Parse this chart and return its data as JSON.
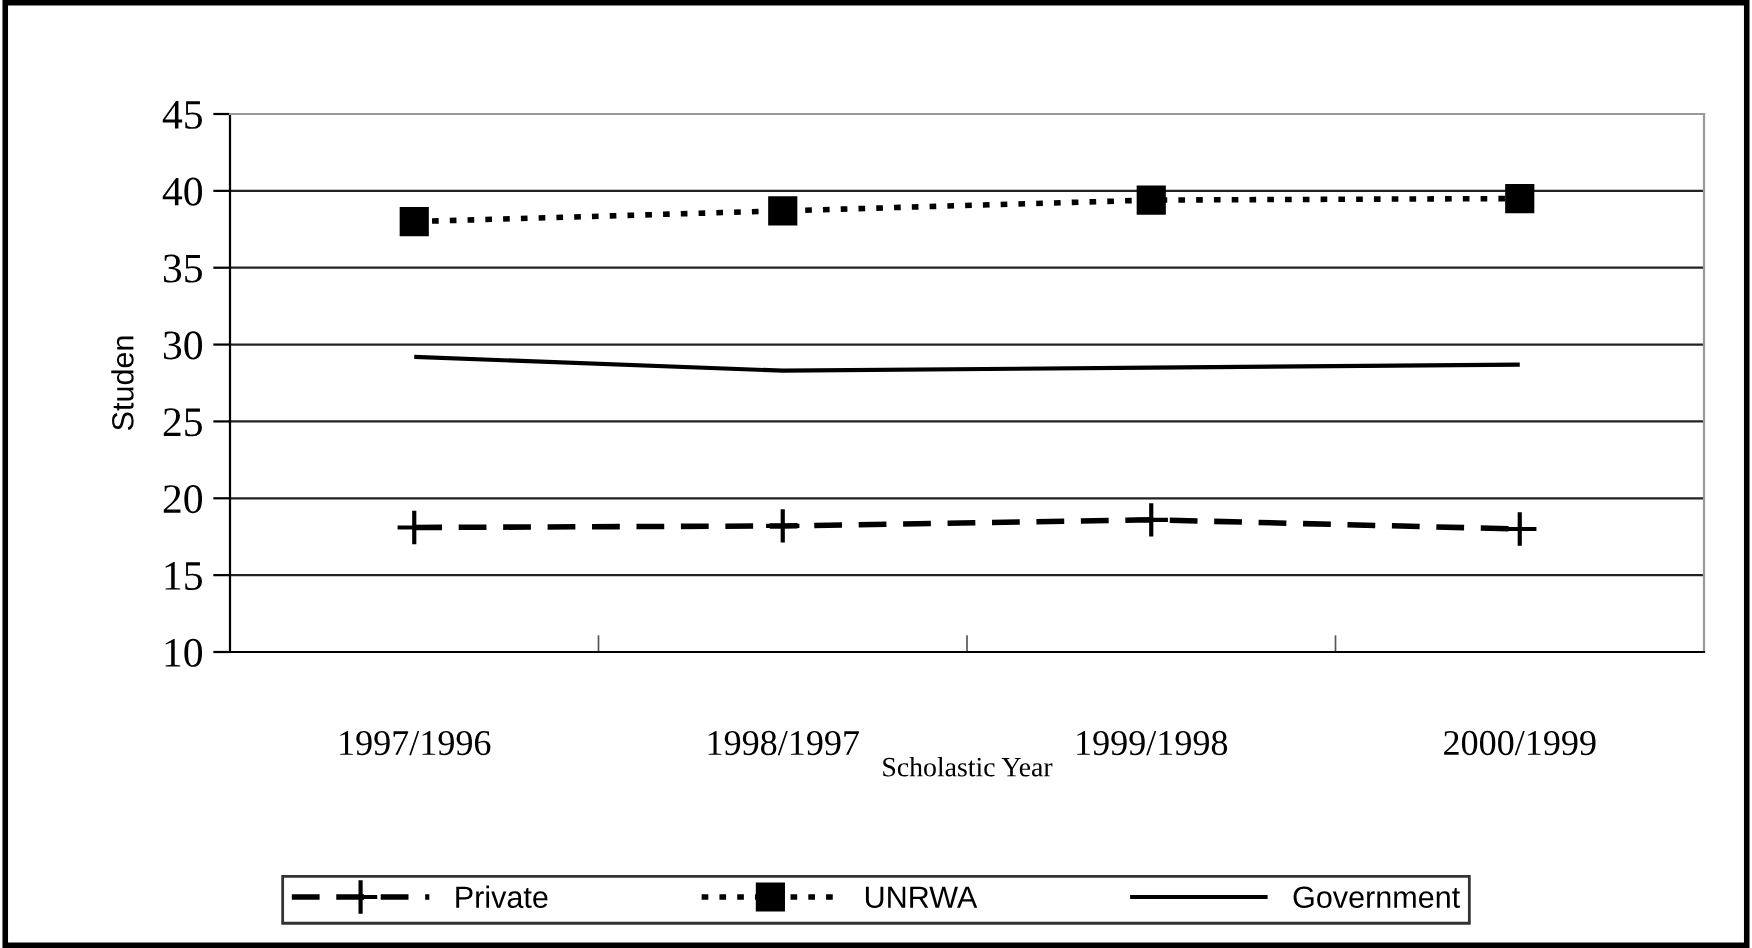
{
  "chart_data": {
    "type": "line",
    "xlabel": "Scholastic Year",
    "ylabel": "Studen",
    "categories": [
      "1997/1996",
      "1998/1997",
      "1999/1998",
      "2000/1999"
    ],
    "series": [
      {
        "name": "Private",
        "color": "#000000",
        "values": [
          18.1,
          18.2,
          18.6,
          18.0
        ],
        "marker": "cross",
        "line_style": "dashed"
      },
      {
        "name": "UNRWA",
        "color": "#000000",
        "values": [
          38.0,
          38.7,
          39.4,
          39.5
        ],
        "marker": "square",
        "line_style": "dotted"
      },
      {
        "name": "Government",
        "color": "#000000",
        "values": [
          29.2,
          28.3,
          28.5,
          28.7
        ],
        "marker": "none",
        "line_style": "solid"
      }
    ],
    "ylim": [
      10,
      45
    ],
    "yticks": [
      10,
      15,
      20,
      25,
      30,
      35,
      40,
      45
    ],
    "grid": "y",
    "legend": "bottom"
  }
}
